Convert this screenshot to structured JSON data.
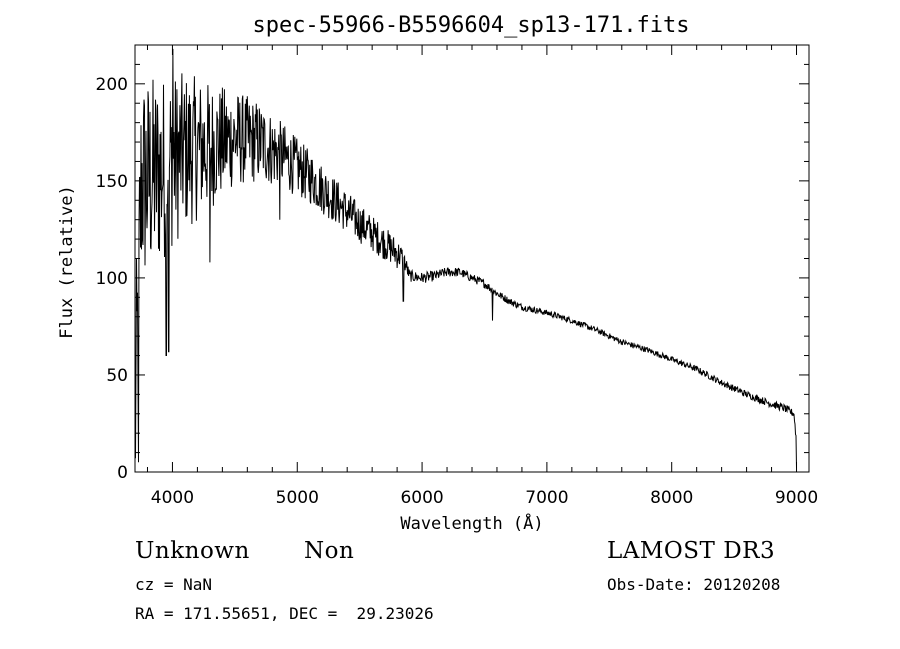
{
  "chart_data": {
    "type": "line",
    "title": "spec-55966-B5596604_sp13-171.fits",
    "xlabel": "Wavelength (Å)",
    "ylabel": "Flux (relative)",
    "xlim": [
      3700,
      9100
    ],
    "ylim": [
      0,
      220
    ],
    "xticks": [
      4000,
      5000,
      6000,
      7000,
      8000,
      9000
    ],
    "yticks": [
      0,
      50,
      100,
      150,
      200
    ],
    "series": [
      {
        "name": "spectrum",
        "envelope": {
          "x": [
            3700,
            3750,
            3800,
            3900,
            4000,
            4100,
            4300,
            4500,
            4700,
            4900,
            5100,
            5300,
            5500,
            5700,
            5850,
            5900,
            6000,
            6100,
            6200,
            6300,
            6400,
            6500,
            6600,
            6700,
            6800,
            7000,
            7200,
            7400,
            7600,
            7800,
            8000,
            8200,
            8400,
            8600,
            8800,
            8900,
            8980,
            9000
          ],
          "y": [
            20,
            150,
            150,
            155,
            160,
            165,
            168,
            172,
            170,
            162,
            152,
            140,
            128,
            118,
            110,
            101,
            100,
            101,
            103,
            103,
            100,
            97,
            92,
            88,
            85,
            82,
            78,
            73,
            67,
            63,
            58,
            53,
            46,
            40,
            35,
            33,
            30,
            15
          ]
        },
        "noise": {
          "x": [
            3700,
            4000,
            4500,
            5000,
            5500,
            5800,
            5900,
            6200,
            7000,
            8000,
            9000
          ],
          "amplitude": [
            60,
            45,
            25,
            15,
            10,
            8,
            3,
            2.5,
            1.5,
            1.5,
            2
          ]
        },
        "features": [
          {
            "x": 3728,
            "y": 5
          },
          {
            "x": 3950,
            "y": 60
          },
          {
            "x": 3970,
            "y": 62
          },
          {
            "x": 4005,
            "y": 218
          },
          {
            "x": 4300,
            "y": 108
          },
          {
            "x": 4860,
            "y": 130
          },
          {
            "x": 5850,
            "y": 88
          },
          {
            "x": 6563,
            "y": 78
          },
          {
            "x": 9000,
            "y": 2
          }
        ]
      }
    ]
  },
  "info": {
    "object_class": "Unknown",
    "subclass": "Non",
    "redshift": "cz = NaN",
    "coords": "RA = 171.55651, DEC =  29.23026",
    "survey": "LAMOST DR3",
    "obs_date": "Obs-Date: 20120208"
  }
}
